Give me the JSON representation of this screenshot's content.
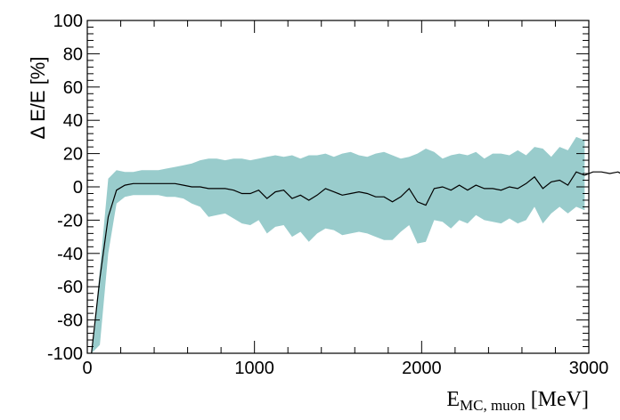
{
  "chart_data": {
    "type": "line",
    "ylabel": "Δ E/E [%]",
    "xlabel": {
      "main": "E",
      "sub": "MC, muon",
      "unit": "[MeV]"
    },
    "xlim": [
      0,
      3000
    ],
    "ylim": [
      -100,
      100
    ],
    "xticks": [
      0,
      1000,
      2000,
      3000
    ],
    "yticks": [
      -100,
      -80,
      -60,
      -40,
      -20,
      0,
      20,
      40,
      60,
      80,
      100
    ],
    "grid": false,
    "legend": "none",
    "colors": {
      "band": "#99cccc",
      "line": "#000000",
      "frame": "#000000"
    },
    "x": [
      25,
      75,
      125,
      175,
      225,
      275,
      325,
      375,
      425,
      475,
      525,
      575,
      625,
      675,
      725,
      775,
      825,
      875,
      925,
      975,
      1025,
      1075,
      1125,
      1175,
      1225,
      1275,
      1325,
      1375,
      1425,
      1475,
      1525,
      1575,
      1625,
      1675,
      1725,
      1775,
      1825,
      1875,
      1925,
      1975,
      2025,
      2075,
      2125,
      2175,
      2225,
      2275,
      2325,
      2375,
      2425,
      2475,
      2525,
      2575,
      2625,
      2675,
      2725,
      2775,
      2825,
      2875,
      2925,
      2975
    ],
    "mean": [
      -100,
      -55,
      -18,
      -2,
      1,
      2,
      2,
      2,
      2,
      2,
      2,
      1,
      0,
      0,
      -1,
      -1,
      -1,
      -2,
      -4,
      -4,
      -2,
      -7,
      -3,
      -2,
      -7,
      -5,
      -8,
      -5,
      -1,
      -3,
      -5,
      -4,
      -3,
      -4,
      -6,
      -6,
      -9,
      -6,
      -1,
      -9,
      -11,
      -1,
      0,
      -2,
      1,
      -2,
      1,
      -1,
      -1,
      -2,
      0,
      -1,
      2,
      6,
      -1,
      3,
      4,
      1,
      9,
      7
    ],
    "upper": [
      -100,
      -50,
      5,
      10,
      9,
      9,
      10,
      10,
      10,
      11,
      12,
      13,
      14,
      16,
      17,
      17,
      16,
      17,
      17,
      16,
      17,
      18,
      19,
      18,
      19,
      17,
      19,
      19,
      20,
      18,
      20,
      21,
      19,
      18,
      20,
      21,
      19,
      17,
      18,
      20,
      23,
      21,
      17,
      19,
      20,
      19,
      21,
      17,
      20,
      20,
      19,
      22,
      19,
      24,
      23,
      18,
      24,
      22,
      30,
      28
    ],
    "lower": [
      -100,
      -95,
      -40,
      -10,
      -6,
      -5,
      -5,
      -5,
      -5,
      -6,
      -6,
      -7,
      -10,
      -12,
      -18,
      -17,
      -16,
      -19,
      -22,
      -23,
      -20,
      -28,
      -24,
      -23,
      -30,
      -27,
      -33,
      -28,
      -25,
      -26,
      -29,
      -28,
      -27,
      -28,
      -30,
      -32,
      -32,
      -27,
      -23,
      -34,
      -33,
      -20,
      -21,
      -25,
      -20,
      -22,
      -17,
      -20,
      -21,
      -22,
      -19,
      -22,
      -20,
      -12,
      -22,
      -16,
      -12,
      -16,
      -12,
      -14
    ],
    "extra_x": [
      2975,
      3025,
      3075,
      3125,
      3175,
      3225,
      3275
    ],
    "extra_mean": [
      7,
      9,
      9,
      8,
      9,
      6,
      9
    ]
  }
}
